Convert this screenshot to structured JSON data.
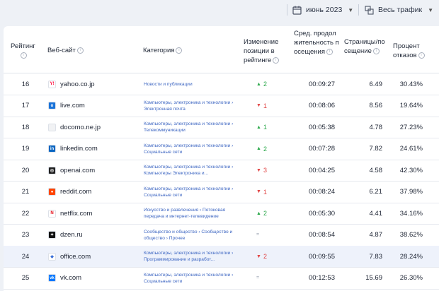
{
  "filters": {
    "date": "июнь 2023",
    "traffic": "Весь трафик"
  },
  "headers": {
    "rank": "Рейтинг",
    "site": "Веб-сайт",
    "category": "Категория",
    "change": "Изменение позиции в рейтинге",
    "duration": "Сред. продолжительность посещения",
    "pages": "Страницы/посещение",
    "bounce": "Процент отказов"
  },
  "rows": [
    {
      "rank": "16",
      "site": "yahoo.co.jp",
      "cat": "Новости и публикации",
      "dir": "up",
      "change": "2",
      "duration": "00:09:27",
      "pages": "6.49",
      "bounce": "30.43%",
      "fav": "Y!",
      "favColor": "#ffffff",
      "favText": "#ff0033"
    },
    {
      "rank": "17",
      "site": "live.com",
      "cat": "Компьютеры, электроника и технологии › Электронная почта",
      "dir": "down",
      "change": "1",
      "duration": "00:08:06",
      "pages": "8.56",
      "bounce": "19.64%",
      "fav": "o",
      "favColor": "#1a73d9",
      "favText": "#ffffff"
    },
    {
      "rank": "18",
      "site": "docomo.ne.jp",
      "cat": "Компьютеры, электроника и технологии › Телекоммуникации",
      "dir": "up",
      "change": "1",
      "duration": "00:05:38",
      "pages": "4.78",
      "bounce": "27.23%",
      "fav": "",
      "favColor": "#f1f2f4",
      "favText": "#999999"
    },
    {
      "rank": "19",
      "site": "linkedin.com",
      "cat": "Компьютеры, электроника и технологии › Социальные сети",
      "dir": "up",
      "change": "2",
      "duration": "00:07:28",
      "pages": "7.82",
      "bounce": "24.61%",
      "fav": "in",
      "favColor": "#0a66c2",
      "favText": "#ffffff"
    },
    {
      "rank": "20",
      "site": "openai.com",
      "cat": "Компьютеры, электроника и технологии › Компьютеры Электроника и...",
      "dir": "down",
      "change": "3",
      "duration": "00:04:25",
      "pages": "4.58",
      "bounce": "42.30%",
      "fav": "◎",
      "favColor": "#222222",
      "favText": "#ffffff"
    },
    {
      "rank": "21",
      "site": "reddit.com",
      "cat": "Компьютеры, электроника и технологии › Социальные сети",
      "dir": "down",
      "change": "1",
      "duration": "00:08:24",
      "pages": "6.21",
      "bounce": "37.98%",
      "fav": "●",
      "favColor": "#ff4500",
      "favText": "#ffffff"
    },
    {
      "rank": "22",
      "site": "netflix.com",
      "cat": "Искусство и развлечения › Потоковая передача и интернет-телевидение",
      "dir": "up",
      "change": "2",
      "duration": "00:05:30",
      "pages": "4.41",
      "bounce": "34.16%",
      "fav": "N",
      "favColor": "#ffffff",
      "favText": "#e50914"
    },
    {
      "rank": "23",
      "site": "dzen.ru",
      "cat": "Сообщество и общество › Сообщество и общество › Прочее",
      "dir": "same",
      "change": "=",
      "duration": "00:08:54",
      "pages": "4.87",
      "bounce": "38.62%",
      "fav": "✦",
      "favColor": "#111111",
      "favText": "#ffffff"
    },
    {
      "rank": "24",
      "site": "office.com",
      "cat": "Компьютеры, электроника и технологии › Программирование и разработ...",
      "dir": "down",
      "change": "2",
      "duration": "00:09:55",
      "pages": "7.83",
      "bounce": "28.24%",
      "fav": "◆",
      "favColor": "#ffffff",
      "favText": "#3b6fd8"
    },
    {
      "rank": "25",
      "site": "vk.com",
      "cat": "Компьютеры, электроника и технологии › Социальные сети",
      "dir": "same",
      "change": "=",
      "duration": "00:12:53",
      "pages": "15.69",
      "bounce": "26.30%",
      "fav": "vk",
      "favColor": "#0077ff",
      "favText": "#ffffff"
    }
  ],
  "colors": {
    "up": "#2aa84a",
    "down": "#e14545",
    "link": "#3d66c2",
    "highlight": "#eef2fb"
  },
  "icons": {
    "calendar": "calendar-icon",
    "traffic": "traffic-source-icon",
    "info": "info-icon",
    "chevron": "chevron-down-icon"
  }
}
